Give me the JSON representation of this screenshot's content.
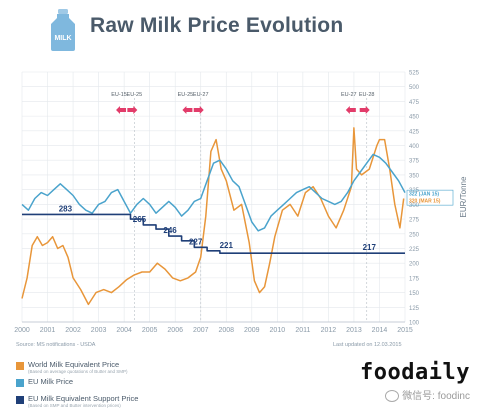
{
  "header": {
    "logo_text": "MILK",
    "title": "Raw Milk Price Evolution"
  },
  "colors": {
    "world": "#e8963a",
    "eu": "#4aa3cc",
    "support": "#1f3f78",
    "event_marker": "#e23c6a",
    "grid": "#e4e8ec",
    "axis_text": "#8a9aa8"
  },
  "footer": {
    "source": "Source: MS notifications - USDA",
    "updated": "Last updated on 12.03.2015"
  },
  "legend": [
    {
      "label": "World Milk Equivalent Price",
      "note": "(Based on average quotations of Butter and SMP)",
      "color": "#e8963a"
    },
    {
      "label": "EU Milk Price",
      "note": "",
      "color": "#4aa3cc"
    },
    {
      "label": "EU Milk Equivalent Support Price",
      "note": "(Based on SMP and Butter intervention prices)",
      "color": "#1f3f78"
    }
  ],
  "watermark": {
    "brand": "foodaily",
    "sub": "微信号: foodinc"
  },
  "chart_data": {
    "type": "line",
    "xlim": [
      2000,
      2015
    ],
    "ylim": [
      100,
      525
    ],
    "x_ticks": [
      2000,
      2001,
      2002,
      2003,
      2004,
      2005,
      2006,
      2007,
      2008,
      2009,
      2010,
      2011,
      2012,
      2013,
      2014,
      2015
    ],
    "y_ticks": [
      100,
      125,
      150,
      175,
      200,
      225,
      250,
      275,
      300,
      325,
      350,
      375,
      400,
      425,
      450,
      475,
      500,
      525
    ],
    "ylabel": "EUR/Tonne",
    "grid": true,
    "series": [
      {
        "name": "World Milk Equivalent Price",
        "color": "#e8963a",
        "x": [
          2000.0,
          2000.2,
          2000.4,
          2000.6,
          2000.8,
          2001.0,
          2001.2,
          2001.4,
          2001.6,
          2001.8,
          2002.0,
          2002.3,
          2002.6,
          2002.9,
          2003.2,
          2003.5,
          2003.8,
          2004.1,
          2004.4,
          2004.7,
          2005.0,
          2005.3,
          2005.6,
          2005.9,
          2006.2,
          2006.5,
          2006.8,
          2007.0,
          2007.2,
          2007.4,
          2007.6,
          2007.8,
          2008.0,
          2008.3,
          2008.6,
          2008.9,
          2009.1,
          2009.3,
          2009.5,
          2009.7,
          2009.9,
          2010.2,
          2010.5,
          2010.8,
          2011.1,
          2011.4,
          2011.7,
          2012.0,
          2012.3,
          2012.6,
          2012.9,
          2013.0,
          2013.1,
          2013.3,
          2013.6,
          2013.9,
          2014.0,
          2014.2,
          2014.4,
          2014.6,
          2014.8,
          2014.95
        ],
        "y": [
          140,
          175,
          230,
          245,
          230,
          235,
          245,
          225,
          230,
          210,
          175,
          155,
          130,
          150,
          155,
          150,
          160,
          172,
          180,
          185,
          185,
          200,
          190,
          175,
          170,
          175,
          185,
          210,
          280,
          390,
          410,
          360,
          340,
          290,
          300,
          235,
          170,
          150,
          160,
          200,
          245,
          290,
          300,
          280,
          320,
          330,
          310,
          280,
          260,
          290,
          330,
          430,
          360,
          350,
          360,
          400,
          410,
          410,
          360,
          300,
          260,
          310
        ]
      },
      {
        "name": "EU Milk Price",
        "color": "#4aa3cc",
        "x": [
          2000.0,
          2000.25,
          2000.5,
          2000.75,
          2001.0,
          2001.25,
          2001.5,
          2001.75,
          2002.0,
          2002.25,
          2002.5,
          2002.75,
          2003.0,
          2003.25,
          2003.5,
          2003.75,
          2004.0,
          2004.25,
          2004.5,
          2004.75,
          2005.0,
          2005.25,
          2005.5,
          2005.75,
          2006.0,
          2006.25,
          2006.5,
          2006.75,
          2007.0,
          2007.25,
          2007.5,
          2007.75,
          2008.0,
          2008.25,
          2008.5,
          2008.75,
          2009.0,
          2009.25,
          2009.5,
          2009.75,
          2010.0,
          2010.25,
          2010.5,
          2010.75,
          2011.0,
          2011.25,
          2011.5,
          2011.75,
          2012.0,
          2012.25,
          2012.5,
          2012.75,
          2013.0,
          2013.25,
          2013.5,
          2013.75,
          2014.0,
          2014.25,
          2014.5,
          2014.75,
          2015.0
        ],
        "y": [
          300,
          290,
          310,
          320,
          315,
          325,
          335,
          325,
          315,
          300,
          290,
          285,
          300,
          305,
          320,
          325,
          305,
          285,
          300,
          310,
          300,
          285,
          295,
          305,
          295,
          280,
          290,
          305,
          310,
          340,
          370,
          375,
          360,
          340,
          330,
          300,
          270,
          255,
          260,
          280,
          290,
          300,
          310,
          320,
          325,
          330,
          320,
          310,
          305,
          300,
          305,
          320,
          340,
          355,
          370,
          385,
          380,
          370,
          355,
          340,
          320
        ]
      },
      {
        "name": "EU Milk Equivalent Support Price",
        "color": "#1f3f78",
        "x": [
          2000.0,
          2004.25,
          2004.25,
          2004.75,
          2004.75,
          2005.25,
          2005.25,
          2005.75,
          2005.75,
          2006.25,
          2006.25,
          2006.75,
          2006.75,
          2007.25,
          2007.25,
          2007.75,
          2007.75,
          2015.0
        ],
        "y": [
          283,
          283,
          275,
          275,
          265,
          265,
          258,
          258,
          246,
          246,
          238,
          238,
          227,
          227,
          221,
          221,
          217,
          217
        ]
      }
    ],
    "step_labels": [
      {
        "text": "283",
        "x": 2001.7,
        "y": 283
      },
      {
        "text": "265",
        "x": 2004.6,
        "y": 265
      },
      {
        "text": "246",
        "x": 2005.8,
        "y": 246
      },
      {
        "text": "227",
        "x": 2006.8,
        "y": 227
      },
      {
        "text": "221",
        "x": 2008.0,
        "y": 221
      },
      {
        "text": "217",
        "x": 2013.6,
        "y": 217
      }
    ],
    "events": [
      {
        "label": "EU-15",
        "x": 2003.8,
        "dashed": false
      },
      {
        "label": "EU-25",
        "x": 2004.4,
        "dashed": true
      },
      {
        "label": "EU-25",
        "x": 2006.4,
        "dashed": false
      },
      {
        "label": "EU-27",
        "x": 2007.0,
        "dashed": true
      },
      {
        "label": "EU-27",
        "x": 2012.8,
        "dashed": false
      },
      {
        "label": "EU-28",
        "x": 2013.5,
        "dashed": true
      }
    ],
    "right_labels": [
      {
        "text": "322 (JAN 15)",
        "color": "#4aa3cc",
        "y": 322
      },
      {
        "text": "320 (MAR 15)",
        "color": "#e8963a",
        "y": 320
      }
    ]
  }
}
